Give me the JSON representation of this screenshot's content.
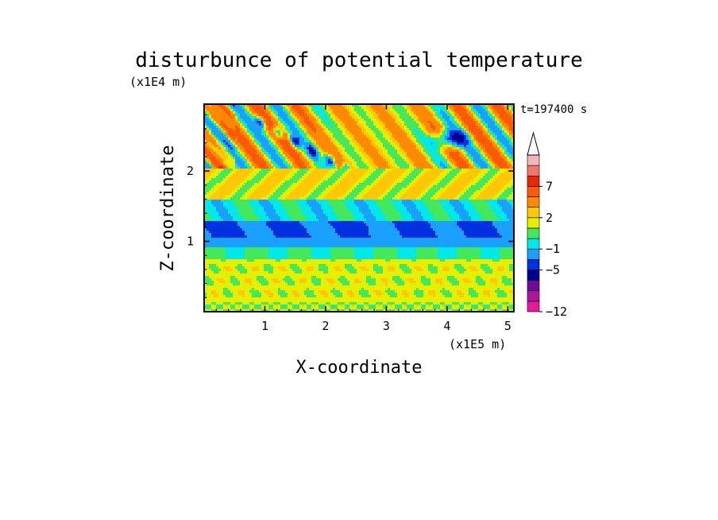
{
  "chart_data": {
    "type": "heatmap",
    "title": "disturbunce of potential temperature",
    "xlabel": "X-coordinate",
    "ylabel": "Z-coordinate",
    "x_unit": "(x1E5 m)",
    "y_unit": "(x1E4 m)",
    "time_label": "t=197400 s",
    "xlim": [
      0,
      5.1
    ],
    "ylim": [
      0,
      2.95
    ],
    "x_ticks": [
      1,
      2,
      3,
      4,
      5
    ],
    "y_ticks": [
      1,
      2
    ],
    "x_tick_labels": [
      "1",
      "2",
      "3",
      "4",
      "5"
    ],
    "y_tick_labels": [
      "1",
      "2"
    ],
    "colorbar": {
      "levels": [
        -12,
        -11,
        -9,
        -7,
        -5,
        -3,
        -1,
        0,
        1,
        2,
        3,
        5,
        7,
        9,
        11
      ],
      "labeled_levels": [
        {
          "value": 7,
          "label": "7"
        },
        {
          "value": 2,
          "label": "2"
        },
        {
          "value": -1,
          "label": "−1"
        },
        {
          "value": -5,
          "label": "−5"
        },
        {
          "value": -12,
          "label": "−12"
        }
      ],
      "colors": [
        "#e6199c",
        "#b0139c",
        "#6e0b9c",
        "#000090",
        "#0031e0",
        "#1aa0ff",
        "#00e8e8",
        "#44e85c",
        "#e4f000",
        "#ffc800",
        "#ff8a00",
        "#ff5a00",
        "#e82800",
        "#f07868",
        "#f5b5b5"
      ],
      "extend_top": true
    },
    "bands": [
      {
        "z_range": [
          0.0,
          0.15
        ],
        "mean": 1,
        "pattern": "mixed yellow/green/orange"
      },
      {
        "z_range": [
          0.15,
          0.75
        ],
        "mean": 1.5,
        "pattern": "yellow with orange patches"
      },
      {
        "z_range": [
          0.75,
          0.9
        ],
        "mean": 0,
        "pattern": "green"
      },
      {
        "z_range": [
          0.9,
          1.3
        ],
        "mean": -2,
        "pattern": "cyan"
      },
      {
        "z_range": [
          1.05,
          1.3
        ],
        "mean": -4,
        "pattern": "blue bands"
      },
      {
        "z_range": [
          1.3,
          1.6
        ],
        "mean": 0,
        "pattern": "green/cyan"
      },
      {
        "z_range": [
          1.6,
          2.1
        ],
        "mean": 1.5,
        "pattern": "yellow"
      },
      {
        "z_range": [
          2.1,
          2.95
        ],
        "mean": 3,
        "pattern": "tilted gravity-wave crests orange/red with blue troughs"
      }
    ]
  }
}
